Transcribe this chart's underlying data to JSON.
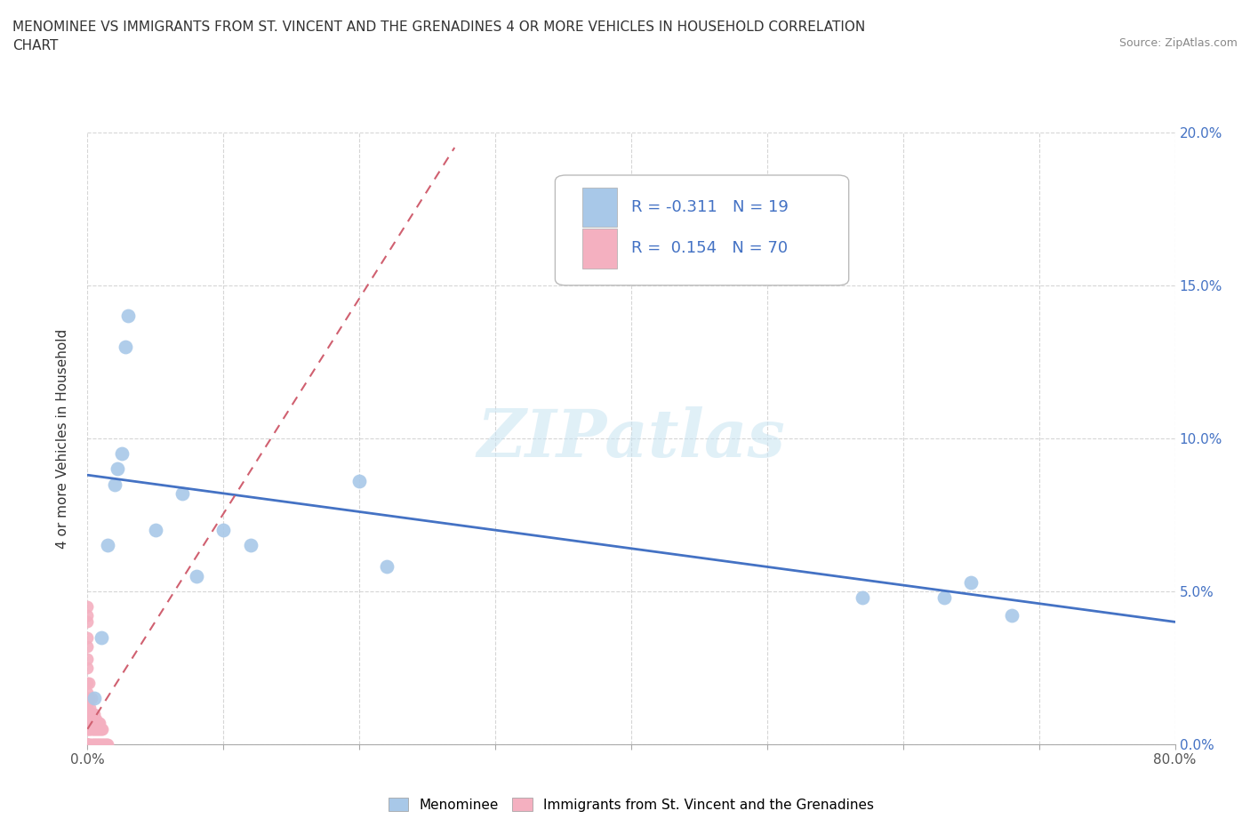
{
  "title_line1": "MENOMINEE VS IMMIGRANTS FROM ST. VINCENT AND THE GRENADINES 4 OR MORE VEHICLES IN HOUSEHOLD CORRELATION",
  "title_line2": "CHART",
  "source_text": "Source: ZipAtlas.com",
  "ylabel": "4 or more Vehicles in Household",
  "xlim": [
    0.0,
    0.8
  ],
  "ylim": [
    0.0,
    0.2
  ],
  "xticks": [
    0.0,
    0.1,
    0.2,
    0.3,
    0.4,
    0.5,
    0.6,
    0.7,
    0.8
  ],
  "xtick_labels_show": [
    "0.0%",
    "",
    "",
    "",
    "",
    "",
    "",
    "",
    "80.0%"
  ],
  "yticks": [
    0.0,
    0.05,
    0.1,
    0.15,
    0.2
  ],
  "ytick_labels_right": [
    "0.0%",
    "5.0%",
    "10.0%",
    "15.0%",
    "20.0%"
  ],
  "menominee_color": "#a8c8e8",
  "immigrants_color": "#f4b0c0",
  "trend_menominee_color": "#4472c4",
  "trend_immigrants_color": "#d06070",
  "R_menominee": -0.311,
  "N_menominee": 19,
  "R_immigrants": 0.154,
  "N_immigrants": 70,
  "legend_label_1": "Menominee",
  "legend_label_2": "Immigrants from St. Vincent and the Grenadines",
  "watermark": "ZIPatlas",
  "menominee_x": [
    0.005,
    0.01,
    0.015,
    0.02,
    0.022,
    0.025,
    0.028,
    0.03,
    0.05,
    0.07,
    0.08,
    0.1,
    0.12,
    0.2,
    0.22,
    0.57,
    0.63,
    0.65,
    0.68
  ],
  "menominee_y": [
    0.015,
    0.035,
    0.065,
    0.085,
    0.09,
    0.095,
    0.13,
    0.14,
    0.07,
    0.082,
    0.055,
    0.07,
    0.065,
    0.086,
    0.058,
    0.048,
    0.048,
    0.053,
    0.042
  ],
  "immigrants_x": [
    0.0,
    0.0,
    0.0,
    0.0,
    0.0,
    0.0,
    0.0,
    0.0,
    0.0,
    0.0,
    0.0,
    0.0,
    0.0,
    0.0,
    0.0,
    0.0,
    0.0,
    0.0,
    0.0,
    0.0,
    0.0,
    0.0,
    0.0,
    0.0,
    0.0,
    0.0,
    0.001,
    0.001,
    0.001,
    0.001,
    0.001,
    0.001,
    0.002,
    0.002,
    0.002,
    0.002,
    0.002,
    0.003,
    0.003,
    0.003,
    0.003,
    0.003,
    0.004,
    0.004,
    0.004,
    0.004,
    0.005,
    0.005,
    0.005,
    0.005,
    0.006,
    0.006,
    0.006,
    0.007,
    0.007,
    0.007,
    0.008,
    0.008,
    0.008,
    0.009,
    0.009,
    0.009,
    0.01,
    0.01,
    0.011,
    0.011,
    0.012,
    0.013,
    0.014,
    0.015
  ],
  "immigrants_y": [
    0.0,
    0.0,
    0.0,
    0.0,
    0.0,
    0.0,
    0.0,
    0.0,
    0.005,
    0.005,
    0.007,
    0.008,
    0.01,
    0.01,
    0.01,
    0.012,
    0.015,
    0.017,
    0.02,
    0.025,
    0.028,
    0.032,
    0.035,
    0.04,
    0.042,
    0.045,
    0.0,
    0.005,
    0.008,
    0.01,
    0.015,
    0.02,
    0.0,
    0.005,
    0.008,
    0.01,
    0.012,
    0.0,
    0.005,
    0.007,
    0.01,
    0.015,
    0.0,
    0.005,
    0.007,
    0.01,
    0.0,
    0.005,
    0.007,
    0.01,
    0.0,
    0.005,
    0.008,
    0.0,
    0.005,
    0.007,
    0.0,
    0.005,
    0.007,
    0.0,
    0.005,
    0.007,
    0.0,
    0.005,
    0.0,
    0.005,
    0.0,
    0.0,
    0.0,
    0.0
  ],
  "imm_trend_x0": 0.0,
  "imm_trend_x1": 0.27,
  "imm_trend_y0": 0.005,
  "imm_trend_y1": 0.195,
  "men_trend_x0": 0.0,
  "men_trend_x1": 0.8,
  "men_trend_y0": 0.088,
  "men_trend_y1": 0.04
}
